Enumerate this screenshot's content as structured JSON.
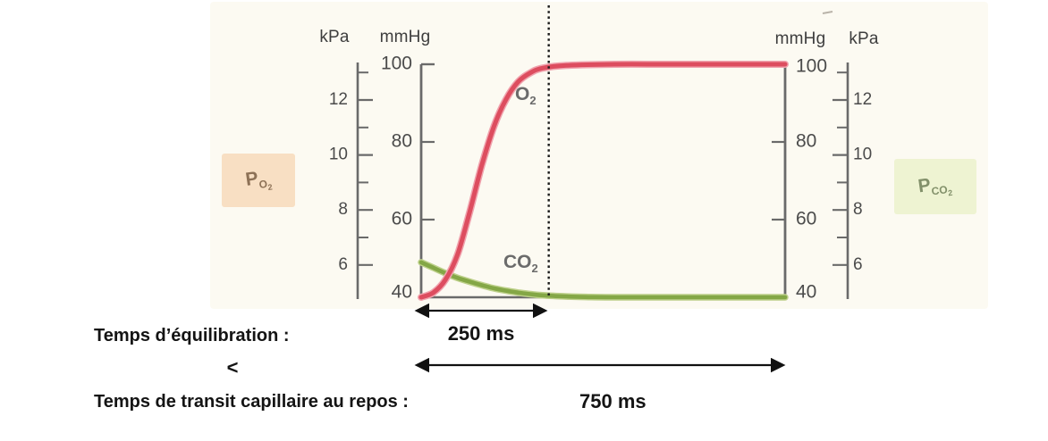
{
  "figure": {
    "axes": {
      "left_kpa": {
        "unit": "kPa",
        "major_ticks": [
          12,
          10,
          8,
          6
        ]
      },
      "left_mmhg": {
        "unit": "mmHg",
        "major_ticks": [
          100,
          80,
          60,
          40
        ]
      },
      "right_mmhg": {
        "unit": "mmHg",
        "major_ticks": [
          100,
          80,
          60,
          40
        ]
      },
      "right_kpa": {
        "unit": "kPa",
        "major_ticks": [
          12,
          10,
          8,
          6
        ]
      }
    },
    "curve_labels": {
      "o2": {
        "base": "O",
        "sub": "2"
      },
      "co2": {
        "base": "CO",
        "sub": "2"
      }
    },
    "side_labels": {
      "po2": {
        "base": "P",
        "sub_base": "O",
        "sub_sub": "2"
      },
      "pco2": {
        "base": "P",
        "sub_base": "CO",
        "sub_sub": "2"
      }
    }
  },
  "annotations": {
    "equilibration_label": "Temps d’équilibration :",
    "equilibration_value": "250 ms",
    "comparator": "<",
    "transit_label": "Temps de transit capillaire au repos :",
    "transit_value": "750 ms"
  },
  "colors": {
    "o2_curve": "#dd4d5f",
    "o2_halo": "#f0a3ae",
    "co2_curve": "#84a746",
    "co2_halo": "#bdd08a",
    "axis": "#6a6a6a",
    "tick_text": "#4b4b4b",
    "dotted_line": "#1a1a1a",
    "arrow": "#111111",
    "po2_box_bg": "#f8dfc3",
    "pco2_box_bg": "#eef3d2",
    "paper_tint": "#fcfaf2"
  },
  "chart_data": {
    "type": "line",
    "x_unit": "ms",
    "x_range_ms": [
      0,
      750
    ],
    "y_primary": {
      "unit": "mmHg",
      "ticks": [
        100,
        80,
        60,
        40
      ],
      "range": [
        40,
        100
      ]
    },
    "y_secondary": {
      "unit": "kPa",
      "ticks": [
        12,
        10,
        8,
        6
      ]
    },
    "grid": false,
    "vline_ms": 250,
    "equilibration_time_ms": 250,
    "capillary_transit_time_rest_ms": 750,
    "series": [
      {
        "name": "O2",
        "color": "#dd4d5f",
        "points": [
          [
            0,
            40
          ],
          [
            25,
            41.2
          ],
          [
            50,
            44.5
          ],
          [
            75,
            51
          ],
          [
            100,
            62
          ],
          [
            125,
            74
          ],
          [
            150,
            84
          ],
          [
            175,
            91
          ],
          [
            200,
            95.5
          ],
          [
            225,
            97.8
          ],
          [
            250,
            99
          ],
          [
            300,
            99.7
          ],
          [
            400,
            100
          ],
          [
            500,
            100
          ],
          [
            600,
            100
          ],
          [
            750,
            100
          ]
        ]
      },
      {
        "name": "CO2",
        "color": "#84a746",
        "points": [
          [
            0,
            49
          ],
          [
            25,
            47.6
          ],
          [
            50,
            46.2
          ],
          [
            75,
            45
          ],
          [
            100,
            44
          ],
          [
            125,
            43.1
          ],
          [
            150,
            42.3
          ],
          [
            175,
            41.7
          ],
          [
            200,
            41.2
          ],
          [
            225,
            40.8
          ],
          [
            250,
            40.5
          ],
          [
            300,
            40.2
          ],
          [
            350,
            40.05
          ],
          [
            400,
            40
          ],
          [
            500,
            40
          ],
          [
            600,
            40
          ],
          [
            750,
            40
          ]
        ]
      }
    ]
  }
}
